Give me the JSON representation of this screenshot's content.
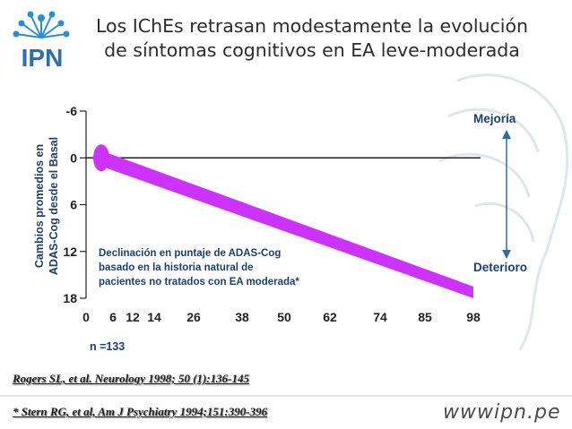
{
  "header": {
    "title_line1": "Los IChEs retrasan modestamente la evolución",
    "title_line2": "de síntomas cognitivos en EA leve-moderada",
    "logo_text": "IPN"
  },
  "chart_data": {
    "type": "area",
    "title": "",
    "xlabel": "",
    "ylabel_line1": "Cambios promedios en",
    "ylabel_line2": "ADAS-Cog desde el  Basal",
    "x_ticks": [
      0,
      6,
      12,
      14,
      26,
      38,
      50,
      62,
      74,
      85,
      98
    ],
    "y_ticks": [
      -6,
      0,
      6,
      12,
      18
    ],
    "ylim": [
      -6,
      18
    ],
    "y_inverted": true,
    "baseline_y": 0,
    "series": [
      {
        "name": "Declinación en puntaje de ADAS-Cog",
        "band_start": {
          "x": 3,
          "y_low": -1,
          "y_high": 1
        },
        "band_end": {
          "x": 98,
          "y_low": 16.5,
          "y_high": 18
        }
      }
    ],
    "annotation": [
      "Declinación en puntaje de ADAS-Cog",
      "basado en la historia natural de",
      "pacientes no tratados con EA moderada*"
    ],
    "n_label": "n =133",
    "arrow_top_label": "Mejoría",
    "arrow_bottom_label": "Deterioro",
    "colors": {
      "band": "#cc33ff",
      "axis": "#222222",
      "label_blue": "#1f3f6b"
    }
  },
  "references": {
    "ref1": "Rogers SL, et al. Neurology 1998; 50 (1):136-145",
    "ref2": "* Stern RG, et al, Am J Psychiatry 1994;151:390-396"
  },
  "footer": {
    "website": "wwwipn.pe"
  }
}
